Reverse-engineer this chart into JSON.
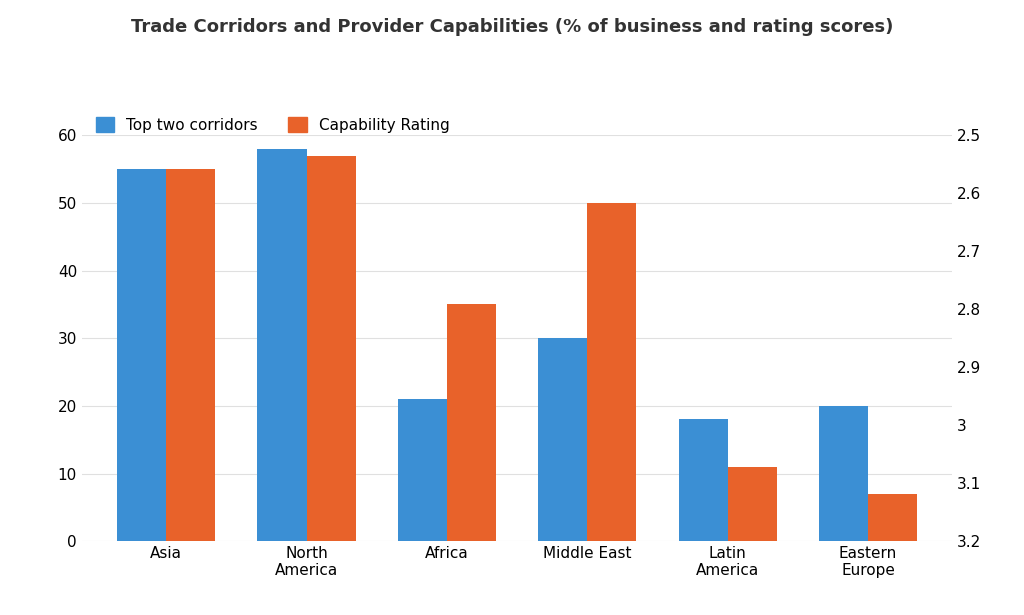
{
  "title": "Trade Corridors and Provider Capabilities (% of business and rating scores)",
  "categories": [
    "Asia",
    "North\nAmerica",
    "Africa",
    "Middle East",
    "Latin\nAmerica",
    "Eastern\nEurope"
  ],
  "blue_values": [
    55,
    58,
    21,
    30,
    18,
    20
  ],
  "orange_values_left_scale": [
    55,
    57,
    35,
    50,
    11,
    7
  ],
  "blue_color": "#3b8fd4",
  "orange_color": "#e8622a",
  "legend_blue": "Top two corridors",
  "legend_orange": "Capability Rating",
  "left_ylim": [
    0,
    60
  ],
  "left_yticks": [
    0,
    10,
    20,
    30,
    40,
    50,
    60
  ],
  "right_ylim": [
    3.2,
    2.5
  ],
  "right_yticks": [
    3.2,
    3.1,
    3.0,
    2.9,
    2.8,
    2.7,
    2.6,
    2.5
  ],
  "right_ytick_labels": [
    "3.2",
    "3.1",
    "3",
    "2.9",
    "2.8",
    "2.7",
    "2.6",
    "2.5"
  ],
  "bar_width": 0.35,
  "background_color": "#ffffff",
  "title_fontsize": 13,
  "label_fontsize": 11,
  "tick_fontsize": 11
}
